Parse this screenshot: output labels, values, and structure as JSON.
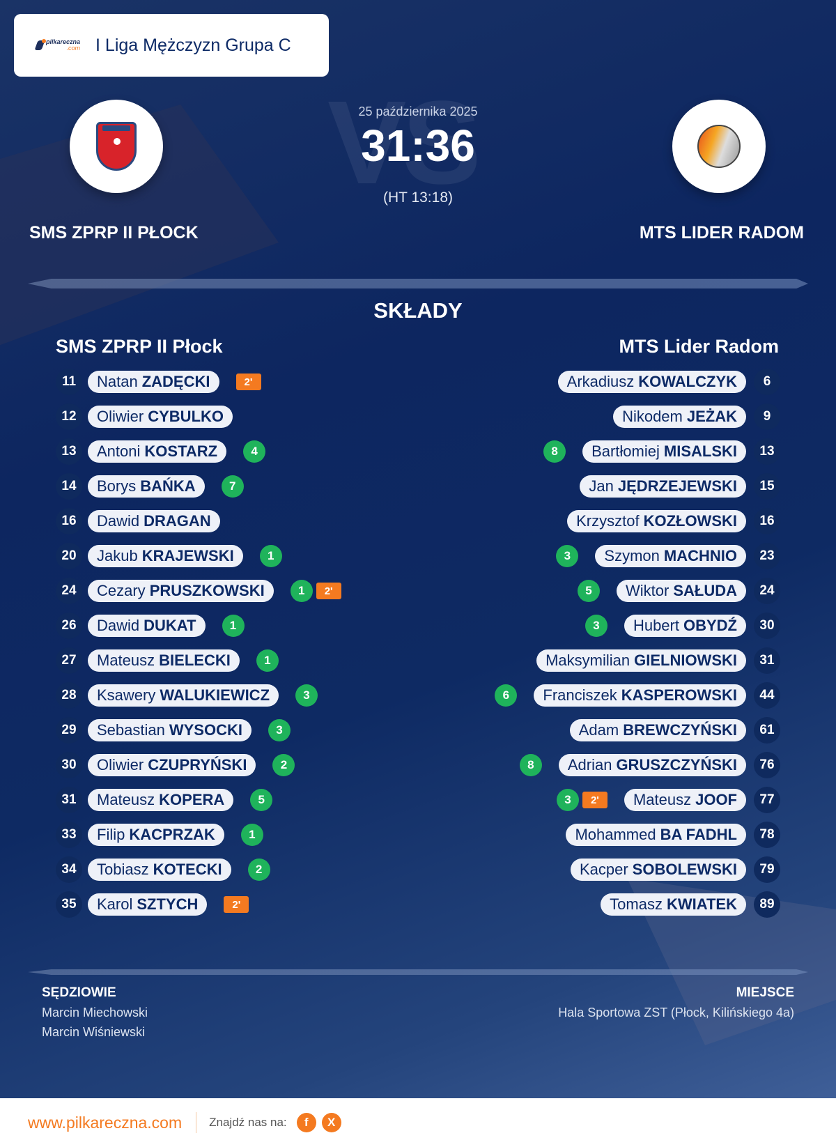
{
  "header": {
    "logo_text": "pilkareczna",
    "logo_suffix": ".com",
    "league": "I Liga Mężczyzn Grupa C"
  },
  "match": {
    "date": "25 października 2025",
    "score": "31:36",
    "halftime": "(HT 13:18)",
    "vs_watermark": "VS",
    "home_team": "SMS ZPRP II PŁOCK",
    "away_team": "MTS LIDER RADOM"
  },
  "lineups": {
    "title": "SKŁADY",
    "home": {
      "title": "SMS ZPRP II Płock",
      "players": [
        {
          "number": "11",
          "first": "Natan",
          "last": "ZADĘCKI",
          "goals": null,
          "penalty": "2'"
        },
        {
          "number": "12",
          "first": "Oliwier",
          "last": "CYBULKO",
          "goals": null,
          "penalty": null
        },
        {
          "number": "13",
          "first": "Antoni",
          "last": "KOSTARZ",
          "goals": "4",
          "penalty": null
        },
        {
          "number": "14",
          "first": "Borys",
          "last": "BAŃKA",
          "goals": "7",
          "penalty": null
        },
        {
          "number": "16",
          "first": "Dawid",
          "last": "DRAGAN",
          "goals": null,
          "penalty": null
        },
        {
          "number": "20",
          "first": "Jakub",
          "last": "KRAJEWSKI",
          "goals": "1",
          "penalty": null
        },
        {
          "number": "24",
          "first": "Cezary",
          "last": "PRUSZKOWSKI",
          "goals": "1",
          "penalty": "2'"
        },
        {
          "number": "26",
          "first": "Dawid",
          "last": "DUKAT",
          "goals": "1",
          "penalty": null
        },
        {
          "number": "27",
          "first": "Mateusz",
          "last": "BIELECKI",
          "goals": "1",
          "penalty": null
        },
        {
          "number": "28",
          "first": "Ksawery",
          "last": "WALUKIEWICZ",
          "goals": "3",
          "penalty": null
        },
        {
          "number": "29",
          "first": "Sebastian",
          "last": "WYSOCKI",
          "goals": "3",
          "penalty": null
        },
        {
          "number": "30",
          "first": "Oliwier",
          "last": "CZUPRYŃSKI",
          "goals": "2",
          "penalty": null
        },
        {
          "number": "31",
          "first": "Mateusz",
          "last": "KOPERA",
          "goals": "5",
          "penalty": null
        },
        {
          "number": "33",
          "first": "Filip",
          "last": "KACPRZAK",
          "goals": "1",
          "penalty": null
        },
        {
          "number": "34",
          "first": "Tobiasz",
          "last": "KOTECKI",
          "goals": "2",
          "penalty": null
        },
        {
          "number": "35",
          "first": "Karol",
          "last": "SZTYCH",
          "goals": null,
          "penalty": "2'"
        }
      ]
    },
    "away": {
      "title": "MTS Lider Radom",
      "players": [
        {
          "number": "6",
          "first": "Arkadiusz",
          "last": "KOWALCZYK",
          "goals": null,
          "penalty": null
        },
        {
          "number": "9",
          "first": "Nikodem",
          "last": "JEŻAK",
          "goals": null,
          "penalty": null
        },
        {
          "number": "13",
          "first": "Bartłomiej",
          "last": "MISALSKI",
          "goals": "8",
          "penalty": null
        },
        {
          "number": "15",
          "first": "Jan",
          "last": "JĘDRZEJEWSKI",
          "goals": null,
          "penalty": null
        },
        {
          "number": "16",
          "first": "Krzysztof",
          "last": "KOZŁOWSKI",
          "goals": null,
          "penalty": null
        },
        {
          "number": "23",
          "first": "Szymon",
          "last": "MACHNIO",
          "goals": "3",
          "penalty": null
        },
        {
          "number": "24",
          "first": "Wiktor",
          "last": "SAŁUDA",
          "goals": "5",
          "penalty": null
        },
        {
          "number": "30",
          "first": "Hubert",
          "last": "OBYDŹ",
          "goals": "3",
          "penalty": null
        },
        {
          "number": "31",
          "first": "Maksymilian",
          "last": "GIELNIOWSKI",
          "goals": null,
          "penalty": null
        },
        {
          "number": "44",
          "first": "Franciszek",
          "last": "KASPEROWSKI",
          "goals": "6",
          "penalty": null
        },
        {
          "number": "61",
          "first": "Adam",
          "last": "BREWCZYŃSKI",
          "goals": null,
          "penalty": null
        },
        {
          "number": "76",
          "first": "Adrian",
          "last": "GRUSZCZYŃSKI",
          "goals": "8",
          "penalty": null
        },
        {
          "number": "77",
          "first": "Mateusz",
          "last": "JOOF",
          "goals": "3",
          "penalty": "2'"
        },
        {
          "number": "78",
          "first": "Mohammed",
          "last": "BA FADHL",
          "goals": null,
          "penalty": null
        },
        {
          "number": "79",
          "first": "Kacper",
          "last": "SOBOLEWSKI",
          "goals": null,
          "penalty": null
        },
        {
          "number": "89",
          "first": "Tomasz",
          "last": "KWIATEK",
          "goals": null,
          "penalty": null
        }
      ]
    }
  },
  "officials": {
    "title": "SĘDZIOWIE",
    "referees": [
      "Marcin Miechowski",
      "Marcin Wiśniewski"
    ]
  },
  "venue": {
    "title": "MIEJSCE",
    "name": "Hala Sportowa ZST (Płock, Kilińskiego 4a)"
  },
  "footer": {
    "site": "www.pilkareczna.com",
    "find_us": "Znajdź nas na:",
    "social": [
      {
        "icon": "facebook-icon",
        "glyph": "f"
      },
      {
        "icon": "x-icon",
        "glyph": "X"
      }
    ]
  },
  "colors": {
    "navy": "#0d2a66",
    "goal_badge": "#1fb35b",
    "penalty_badge": "#f47a20",
    "accent": "#f47a20"
  }
}
